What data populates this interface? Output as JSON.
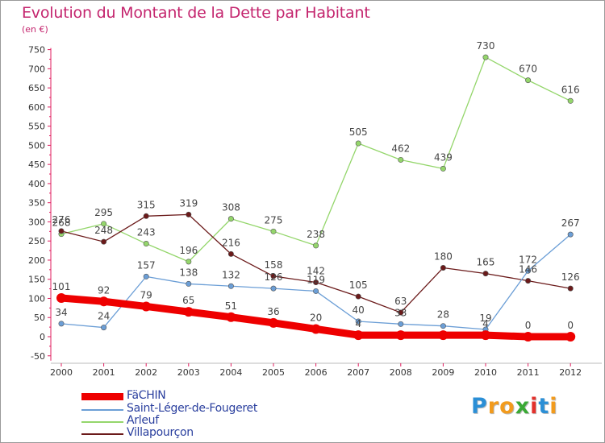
{
  "title": "Evolution du Montant de la Dette par Habitant",
  "unit": "(en €)",
  "logo": {
    "text": "Proxiti",
    "letters": [
      "P",
      "r",
      "o",
      "x",
      "i",
      "t",
      "i"
    ],
    "colors": [
      "#2b8fd6",
      "#f29b1d",
      "#f29b1d",
      "#3aa935",
      "#e3312d",
      "#2b8fd6",
      "#f29b1d"
    ]
  },
  "chart_data": {
    "type": "line",
    "categories": [
      "2000",
      "2001",
      "2002",
      "2003",
      "2004",
      "2005",
      "2006",
      "2007",
      "2008",
      "2009",
      "2010",
      "2011",
      "2012"
    ],
    "y_ticks": [
      "750",
      "700",
      "650",
      "600",
      "550",
      "500",
      "450",
      "400",
      "350",
      "300",
      "250",
      "200",
      "150",
      "100",
      "50",
      "0",
      "-50"
    ],
    "ylim": [
      -50,
      750
    ],
    "grid": false,
    "legend_position": "bottom-left",
    "series": [
      {
        "name": "FäCHIN",
        "color": "#ee0000",
        "width": 9,
        "values": [
          101,
          92,
          79,
          65,
          51,
          36,
          20,
          4,
          4,
          4,
          4,
          0,
          0
        ],
        "labels": [
          "101",
          "92",
          "79",
          "65",
          "51",
          "36",
          "20",
          "4",
          "",
          "",
          "4",
          "0",
          "0"
        ]
      },
      {
        "name": "Saint-Léger-de-Fougeret",
        "color": "#6b9ed6",
        "width": 1.3,
        "values": [
          34,
          24,
          157,
          138,
          132,
          126,
          119,
          40,
          33,
          28,
          19,
          172,
          267
        ],
        "labels": [
          "34",
          "24",
          "157",
          "138",
          "132",
          "126",
          "119",
          "40",
          "33",
          "28",
          "19",
          "172",
          "267"
        ]
      },
      {
        "name": "Arleuf",
        "color": "#94d66b",
        "width": 1.3,
        "values": [
          268,
          295,
          243,
          196,
          308,
          275,
          238,
          505,
          462,
          439,
          730,
          670,
          616
        ],
        "labels": [
          "268",
          "295",
          "243",
          "196",
          "308",
          "275",
          "238",
          "505",
          "462",
          "439",
          "730",
          "670",
          "616"
        ]
      },
      {
        "name": "Villapourçon",
        "color": "#6b1a1a",
        "width": 1.3,
        "values": [
          276,
          248,
          315,
          319,
          216,
          158,
          142,
          105,
          63,
          180,
          165,
          146,
          126
        ],
        "labels": [
          "276",
          "248",
          "315",
          "319",
          "216",
          "158",
          "142",
          "105",
          "63",
          "180",
          "165",
          "146",
          "126"
        ]
      }
    ]
  }
}
